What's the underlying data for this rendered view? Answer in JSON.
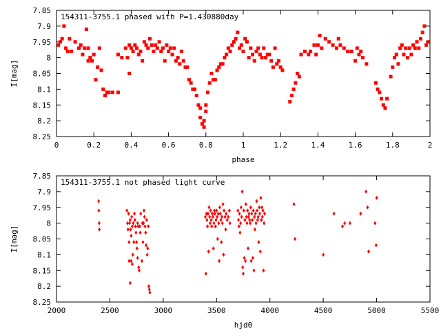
{
  "chart_data": [
    {
      "type": "scatter",
      "title": "154311-3755.1 phased with P=1.430880day",
      "xlabel": "phase",
      "ylabel": "I[mag]",
      "xlim": [
        0,
        2
      ],
      "ylim": [
        8.25,
        7.85
      ],
      "y_inverted": true,
      "xticks": [
        "0",
        "0.2",
        "0.4",
        "0.6",
        "0.8",
        "1",
        "1.2",
        "1.4",
        "1.6",
        "1.8",
        "2"
      ],
      "yticks": [
        "7.85",
        "7.9",
        "7.95",
        "8",
        "8.05",
        "8.1",
        "8.15",
        "8.2",
        "8.25"
      ],
      "marker_color": "#ff0000",
      "grid": false,
      "legend": "none",
      "points": [
        [
          0.01,
          7.96
        ],
        [
          0.02,
          7.95
        ],
        [
          0.03,
          7.94
        ],
        [
          0.04,
          7.9
        ],
        [
          0.05,
          7.97
        ],
        [
          0.06,
          7.98
        ],
        [
          0.07,
          7.94
        ],
        [
          0.08,
          7.98
        ],
        [
          0.1,
          7.95
        ],
        [
          0.12,
          7.97
        ],
        [
          0.13,
          7.96
        ],
        [
          0.14,
          7.99
        ],
        [
          0.15,
          7.97
        ],
        [
          0.16,
          7.91
        ],
        [
          0.17,
          8.01
        ],
        [
          0.17,
          7.97
        ],
        [
          0.18,
          8.0
        ],
        [
          0.19,
          8.01
        ],
        [
          0.2,
          7.99
        ],
        [
          0.21,
          8.07
        ],
        [
          0.22,
          8.03
        ],
        [
          0.23,
          7.97
        ],
        [
          0.24,
          8.04
        ],
        [
          0.25,
          8.1
        ],
        [
          0.26,
          8.12
        ],
        [
          0.27,
          8.11
        ],
        [
          0.28,
          8.11
        ],
        [
          0.3,
          8.11
        ],
        [
          0.33,
          8.11
        ],
        [
          0.33,
          7.99
        ],
        [
          0.35,
          8.0
        ],
        [
          0.37,
          7.97
        ],
        [
          0.38,
          8.0
        ],
        [
          0.39,
          7.96
        ],
        [
          0.39,
          8.05
        ],
        [
          0.4,
          7.97
        ],
        [
          0.41,
          7.98
        ],
        [
          0.42,
          7.96
        ],
        [
          0.43,
          7.97
        ],
        [
          0.44,
          7.99
        ],
        [
          0.45,
          7.98
        ],
        [
          0.46,
          8.01
        ],
        [
          0.47,
          7.95
        ],
        [
          0.48,
          7.96
        ],
        [
          0.49,
          7.97
        ],
        [
          0.5,
          7.94
        ],
        [
          0.51,
          7.96
        ],
        [
          0.52,
          7.98
        ],
        [
          0.53,
          7.96
        ],
        [
          0.54,
          7.97
        ],
        [
          0.55,
          7.95
        ],
        [
          0.56,
          7.98
        ],
        [
          0.57,
          7.97
        ],
        [
          0.58,
          8.01
        ],
        [
          0.59,
          7.96
        ],
        [
          0.6,
          7.98
        ],
        [
          0.61,
          7.97
        ],
        [
          0.62,
          7.99
        ],
        [
          0.63,
          7.97
        ],
        [
          0.64,
          8.01
        ],
        [
          0.65,
          8.0
        ],
        [
          0.66,
          8.02
        ],
        [
          0.67,
          7.98
        ],
        [
          0.68,
          8.01
        ],
        [
          0.69,
          8.03
        ],
        [
          0.7,
          8.03
        ],
        [
          0.71,
          8.07
        ],
        [
          0.72,
          8.08
        ],
        [
          0.73,
          8.1
        ],
        [
          0.74,
          8.1
        ],
        [
          0.75,
          8.12
        ],
        [
          0.76,
          8.15
        ],
        [
          0.77,
          8.16
        ],
        [
          0.77,
          8.19
        ],
        [
          0.78,
          8.21
        ],
        [
          0.79,
          8.22
        ],
        [
          0.79,
          8.2
        ],
        [
          0.8,
          8.17
        ],
        [
          0.8,
          8.15
        ],
        [
          0.81,
          8.11
        ],
        [
          0.82,
          8.08
        ],
        [
          0.83,
          8.05
        ],
        [
          0.84,
          8.07
        ],
        [
          0.85,
          8.07
        ],
        [
          0.86,
          8.04
        ],
        [
          0.87,
          8.03
        ],
        [
          0.88,
          8.02
        ],
        [
          0.89,
          8.02
        ],
        [
          0.9,
          8.0
        ],
        [
          0.91,
          7.99
        ],
        [
          0.92,
          7.97
        ],
        [
          0.93,
          7.98
        ],
        [
          0.94,
          7.96
        ],
        [
          0.95,
          7.95
        ],
        [
          0.96,
          7.94
        ],
        [
          0.97,
          7.92
        ],
        [
          0.98,
          7.97
        ],
        [
          0.99,
          7.96
        ],
        [
          1.0,
          7.98
        ],
        [
          1.01,
          7.94
        ],
        [
          1.02,
          7.95
        ],
        [
          1.03,
          8.0
        ],
        [
          1.04,
          7.97
        ],
        [
          1.05,
          7.99
        ],
        [
          1.06,
          8.01
        ],
        [
          1.07,
          7.98
        ],
        [
          1.08,
          7.97
        ],
        [
          1.09,
          7.99
        ],
        [
          1.1,
          8.0
        ],
        [
          1.11,
          7.97
        ],
        [
          1.12,
          8.0
        ],
        [
          1.13,
          7.99
        ],
        [
          1.14,
          7.99
        ],
        [
          1.15,
          8.01
        ],
        [
          1.16,
          8.03
        ],
        [
          1.17,
          7.97
        ],
        [
          1.18,
          8.02
        ],
        [
          1.19,
          8.01
        ],
        [
          1.2,
          8.03
        ],
        [
          1.21,
          8.04
        ],
        [
          1.25,
          8.14
        ],
        [
          1.26,
          8.12
        ],
        [
          1.27,
          8.1
        ],
        [
          1.28,
          8.08
        ],
        [
          1.29,
          8.05
        ],
        [
          1.3,
          8.06
        ],
        [
          1.31,
          7.99
        ],
        [
          1.33,
          7.98
        ],
        [
          1.35,
          7.99
        ],
        [
          1.36,
          7.98
        ],
        [
          1.38,
          7.96
        ],
        [
          1.39,
          7.99
        ],
        [
          1.4,
          7.96
        ],
        [
          1.41,
          7.93
        ],
        [
          1.42,
          7.97
        ],
        [
          1.44,
          7.94
        ],
        [
          1.46,
          7.95
        ],
        [
          1.48,
          7.96
        ],
        [
          1.5,
          7.97
        ],
        [
          1.51,
          7.94
        ],
        [
          1.52,
          7.96
        ],
        [
          1.54,
          7.97
        ],
        [
          1.56,
          7.98
        ],
        [
          1.58,
          7.98
        ],
        [
          1.6,
          8.01
        ],
        [
          1.61,
          7.97
        ],
        [
          1.62,
          7.99
        ],
        [
          1.63,
          7.98
        ],
        [
          1.64,
          8.0
        ],
        [
          1.66,
          8.02
        ],
        [
          1.71,
          8.08
        ],
        [
          1.72,
          8.1
        ],
        [
          1.73,
          8.11
        ],
        [
          1.74,
          8.13
        ],
        [
          1.75,
          8.15
        ],
        [
          1.76,
          8.16
        ],
        [
          1.77,
          8.13
        ],
        [
          1.79,
          8.06
        ],
        [
          1.8,
          8.03
        ],
        [
          1.81,
          8.0
        ],
        [
          1.82,
          7.99
        ],
        [
          1.83,
          8.02
        ],
        [
          1.84,
          7.97
        ],
        [
          1.85,
          7.96
        ],
        [
          1.86,
          7.99
        ],
        [
          1.87,
          7.97
        ],
        [
          1.88,
          8.0
        ],
        [
          1.89,
          7.97
        ],
        [
          1.9,
          7.99
        ],
        [
          1.91,
          7.96
        ],
        [
          1.92,
          7.97
        ],
        [
          1.93,
          7.95
        ],
        [
          1.94,
          7.97
        ],
        [
          1.95,
          7.94
        ],
        [
          1.96,
          7.92
        ],
        [
          1.97,
          7.9
        ],
        [
          1.98,
          7.96
        ],
        [
          1.99,
          7.95
        ]
      ]
    },
    {
      "type": "scatter",
      "title": "154311-3755.1 not phased light curve",
      "xlabel": "hjd0",
      "ylabel": "I[mag]",
      "xlim": [
        2000,
        5500
      ],
      "ylim": [
        8.25,
        7.85
      ],
      "y_inverted": true,
      "xticks": [
        "2000",
        "2500",
        "3000",
        "3500",
        "4000",
        "4500",
        "5000",
        "5500"
      ],
      "yticks": [
        "7.85",
        "7.9",
        "7.95",
        "8",
        "8.05",
        "8.1",
        "8.15",
        "8.2",
        "8.25"
      ],
      "marker_color": "#ff0000",
      "grid": false,
      "legend": "none",
      "points": [
        [
          2395,
          7.93
        ],
        [
          2397,
          7.96
        ],
        [
          2400,
          8.0
        ],
        [
          2402,
          8.02
        ],
        [
          2660,
          7.96
        ],
        [
          2665,
          8.0
        ],
        [
          2670,
          8.02
        ],
        [
          2675,
          7.97
        ],
        [
          2680,
          8.06
        ],
        [
          2685,
          8.0
        ],
        [
          2690,
          7.99
        ],
        [
          2695,
          8.02
        ],
        [
          2700,
          8.04
        ],
        [
          2705,
          7.98
        ],
        [
          2710,
          8.01
        ],
        [
          2715,
          8.1
        ],
        [
          2720,
          8.0
        ],
        [
          2725,
          8.06
        ],
        [
          2730,
          7.97
        ],
        [
          2735,
          7.99
        ],
        [
          2740,
          8.01
        ],
        [
          2745,
          8.03
        ],
        [
          2750,
          8.06
        ],
        [
          2755,
          8.08
        ],
        [
          2760,
          8.0
        ],
        [
          2765,
          8.01
        ],
        [
          2770,
          8.14
        ],
        [
          2775,
          8.15
        ],
        [
          2780,
          8.01
        ],
        [
          2785,
          8.03
        ],
        [
          2790,
          7.97
        ],
        [
          2800,
          8.12
        ],
        [
          2805,
          8.0
        ],
        [
          2810,
          8.06
        ],
        [
          2815,
          8.0
        ],
        [
          2820,
          7.96
        ],
        [
          2825,
          7.98
        ],
        [
          2830,
          8.01
        ],
        [
          2835,
          8.03
        ],
        [
          2840,
          8.07
        ],
        [
          2845,
          7.99
        ],
        [
          2850,
          8.1
        ],
        [
          2855,
          8.08
        ],
        [
          2860,
          8.01
        ],
        [
          2865,
          8.2
        ],
        [
          2870,
          8.21
        ],
        [
          2875,
          8.22
        ],
        [
          2680,
          8.12
        ],
        [
          2690,
          8.19
        ],
        [
          2700,
          8.12
        ],
        [
          2710,
          8.13
        ],
        [
          2760,
          8.11
        ],
        [
          3395,
          7.98
        ],
        [
          3400,
          8.16
        ],
        [
          3405,
          7.97
        ],
        [
          3410,
          7.99
        ],
        [
          3415,
          8.01
        ],
        [
          3420,
          7.97
        ],
        [
          3425,
          8.09
        ],
        [
          3430,
          7.95
        ],
        [
          3435,
          7.98
        ],
        [
          3440,
          8.0
        ],
        [
          3445,
          7.96
        ],
        [
          3450,
          7.99
        ],
        [
          3455,
          8.01
        ],
        [
          3460,
          7.97
        ],
        [
          3465,
          7.98
        ],
        [
          3470,
          8.08
        ],
        [
          3475,
          8.0
        ],
        [
          3480,
          7.96
        ],
        [
          3485,
          7.97
        ],
        [
          3490,
          8.01
        ],
        [
          3495,
          7.99
        ],
        [
          3500,
          7.96
        ],
        [
          3505,
          7.98
        ],
        [
          3510,
          8.05
        ],
        [
          3515,
          7.97
        ],
        [
          3520,
          8.0
        ],
        [
          3525,
          8.12
        ],
        [
          3530,
          7.95
        ],
        [
          3535,
          7.97
        ],
        [
          3540,
          7.99
        ],
        [
          3545,
          8.06
        ],
        [
          3550,
          7.98
        ],
        [
          3555,
          8.0
        ],
        [
          3560,
          7.94
        ],
        [
          3565,
          8.1
        ],
        [
          3570,
          7.96
        ],
        [
          3580,
          7.98
        ],
        [
          3585,
          8.02
        ],
        [
          3590,
          7.97
        ],
        [
          3600,
          7.99
        ],
        [
          3610,
          7.98
        ],
        [
          3620,
          7.96
        ],
        [
          3625,
          8.0
        ],
        [
          3700,
          7.96
        ],
        [
          3705,
          7.99
        ],
        [
          3710,
          8.01
        ],
        [
          3715,
          7.97
        ],
        [
          3720,
          8.03
        ],
        [
          3725,
          8.0
        ],
        [
          3730,
          7.95
        ],
        [
          3735,
          7.98
        ],
        [
          3740,
          7.9
        ],
        [
          3745,
          8.14
        ],
        [
          3750,
          8.16
        ],
        [
          3755,
          7.96
        ],
        [
          3760,
          8.11
        ],
        [
          3765,
          7.99
        ],
        [
          3770,
          8.12
        ],
        [
          3775,
          7.94
        ],
        [
          3780,
          7.98
        ],
        [
          3785,
          8.0
        ],
        [
          3790,
          7.96
        ],
        [
          3795,
          8.08
        ],
        [
          3800,
          7.98
        ],
        [
          3805,
          7.97
        ],
        [
          3810,
          7.99
        ],
        [
          3815,
          8.0
        ],
        [
          3820,
          7.95
        ],
        [
          3825,
          8.12
        ],
        [
          3830,
          7.97
        ],
        [
          3835,
          7.99
        ],
        [
          3840,
          8.11
        ],
        [
          3845,
          7.96
        ],
        [
          3850,
          8.15
        ],
        [
          3855,
          7.98
        ],
        [
          3860,
          8.02
        ],
        [
          3865,
          7.97
        ],
        [
          3870,
          8.0
        ],
        [
          3875,
          7.93
        ],
        [
          3880,
          7.96
        ],
        [
          3885,
          7.99
        ],
        [
          3890,
          7.98
        ],
        [
          3895,
          8.06
        ],
        [
          3900,
          7.95
        ],
        [
          3905,
          7.97
        ],
        [
          3910,
          8.09
        ],
        [
          3915,
          7.92
        ],
        [
          3920,
          7.99
        ],
        [
          3925,
          7.95
        ],
        [
          3930,
          7.98
        ],
        [
          3935,
          7.96
        ],
        [
          3940,
          8.15
        ],
        [
          3945,
          8.0
        ],
        [
          3950,
          7.97
        ],
        [
          4225,
          7.94
        ],
        [
          4235,
          8.05
        ],
        [
          4500,
          8.1
        ],
        [
          4600,
          7.97
        ],
        [
          4680,
          8.01
        ],
        [
          4700,
          8.0
        ],
        [
          4750,
          8.0
        ],
        [
          4850,
          7.97
        ],
        [
          4900,
          7.9
        ],
        [
          4915,
          7.95
        ],
        [
          4925,
          8.09
        ],
        [
          4985,
          8.0
        ],
        [
          4995,
          8.07
        ],
        [
          5000,
          7.92
        ]
      ]
    }
  ]
}
